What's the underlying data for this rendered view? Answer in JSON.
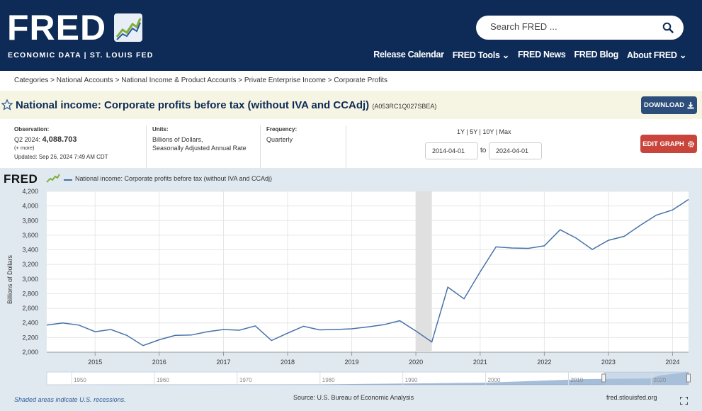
{
  "header": {
    "logo": "FRED",
    "logo_sub": "ECONOMIC DATA  |  ST. LOUIS FED",
    "search_placeholder": "Search FRED ...",
    "nav": [
      "Release Calendar",
      "FRED Tools",
      "FRED News",
      "FRED Blog",
      "About FRED"
    ]
  },
  "breadcrumb": "Categories > National Accounts > National Income & Product Accounts > Private Enterprise Income > Corporate Profits",
  "title": "National income: Corporate profits before tax (without IVA and CCAdj)",
  "series_id": "(A053RC1Q027SBEA)",
  "download_label": "DOWNLOAD",
  "observation": {
    "label": "Observation:",
    "period": "Q2 2024:",
    "value": "4,088.703",
    "more": "(+ more)",
    "updated": "Updated: Sep 26, 2024 7:49 AM CDT"
  },
  "units": {
    "label": "Units:",
    "line1": "Billions of Dollars,",
    "line2": "Seasonally Adjusted Annual Rate"
  },
  "frequency": {
    "label": "Frequency:",
    "value": "Quarterly"
  },
  "range_links": "1Y | 5Y | 10Y | Max",
  "date_from": "2014-04-01",
  "date_to": "2024-04-01",
  "to_label": "to",
  "edit_label": "EDIT GRAPH",
  "chart_mini_logo": "FRED",
  "footer": {
    "note": "Shaded areas indicate U.S. recessions.",
    "source": "Source: U.S. Bureau of Economic Analysis",
    "url": "fred.stlouisfed.org"
  },
  "chart_data": {
    "type": "line",
    "legend": "National income: Corporate profits before tax (without IVA and CCAdj)",
    "ylabel": "Billions of Dollars",
    "ylim": [
      2000,
      4200
    ],
    "yticks": [
      2000,
      2200,
      2400,
      2600,
      2800,
      3000,
      3200,
      3400,
      3600,
      3800,
      4000,
      4200
    ],
    "xlim": [
      "2014-04-01",
      "2024-04-01"
    ],
    "xticks": [
      "2015",
      "2016",
      "2017",
      "2018",
      "2019",
      "2020",
      "2021",
      "2022",
      "2023",
      "2024"
    ],
    "recessions": [
      [
        "2020-01-01",
        "2020-04-01"
      ]
    ],
    "color": "#4572a7",
    "series": [
      {
        "x": [
          "2014-04-01",
          "2014-07-01",
          "2014-10-01",
          "2015-01-01",
          "2015-04-01",
          "2015-07-01",
          "2015-10-01",
          "2016-01-01",
          "2016-04-01",
          "2016-07-01",
          "2016-10-01",
          "2017-01-01",
          "2017-04-01",
          "2017-07-01",
          "2017-10-01",
          "2018-01-01",
          "2018-04-01",
          "2018-07-01",
          "2018-10-01",
          "2019-01-01",
          "2019-04-01",
          "2019-07-01",
          "2019-10-01",
          "2020-01-01",
          "2020-04-01",
          "2020-07-01",
          "2020-10-01",
          "2021-01-01",
          "2021-04-01",
          "2021-07-01",
          "2021-10-01",
          "2022-01-01",
          "2022-04-01",
          "2022-07-01",
          "2022-10-01",
          "2023-01-01",
          "2023-04-01",
          "2023-07-01",
          "2023-10-01",
          "2024-01-01",
          "2024-04-01"
        ],
        "values": [
          2370,
          2400,
          2370,
          2280,
          2310,
          2230,
          2090,
          2170,
          2230,
          2235,
          2280,
          2310,
          2300,
          2360,
          2160,
          2260,
          2355,
          2305,
          2310,
          2320,
          2345,
          2375,
          2430,
          2290,
          2140,
          2890,
          2730,
          3100,
          3440,
          3425,
          3420,
          3455,
          3675,
          3560,
          3405,
          3530,
          3585,
          3735,
          3875,
          3945,
          4089
        ]
      }
    ],
    "navigator_xticks": [
      "1950",
      "1960",
      "1970",
      "1980",
      "1990",
      "2000",
      "2010",
      "2020"
    ]
  },
  "icons": {
    "search": "search-icon",
    "star": "star-icon",
    "download": "download-icon",
    "gear": "gear-icon",
    "fullscreen": "fullscreen-icon"
  }
}
